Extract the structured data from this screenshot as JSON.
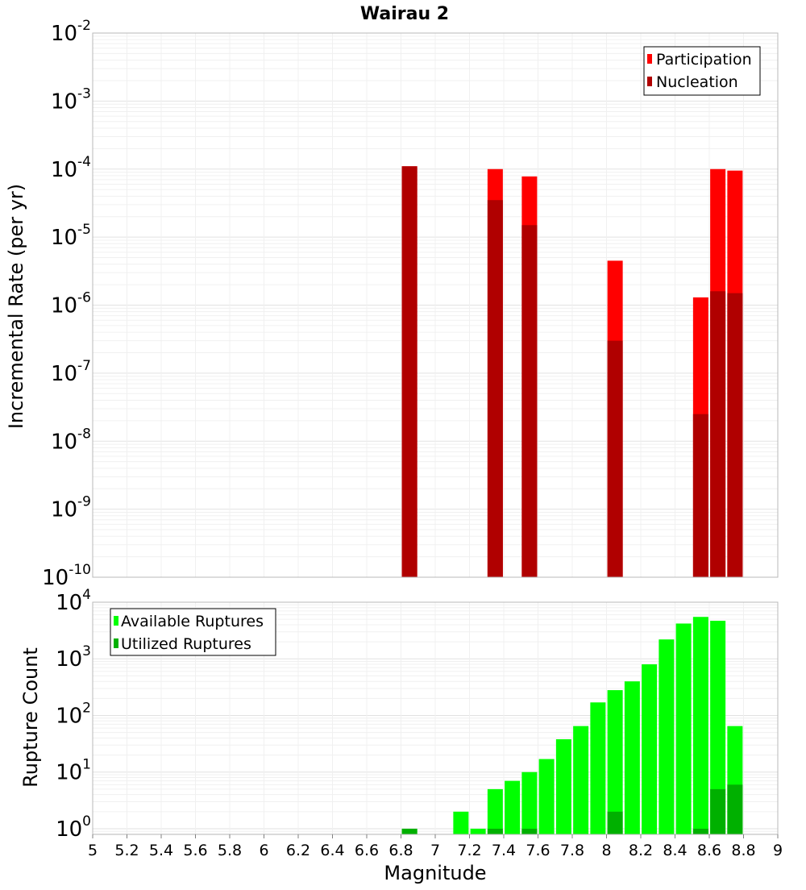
{
  "chart_data": [
    {
      "type": "bar",
      "title": "Wairau 2",
      "xlabel": "",
      "ylabel": "Incremental Rate (per yr)",
      "y_scale": "log",
      "ylim_exp": [
        -10,
        -2
      ],
      "xlim": [
        5,
        9
      ],
      "grid": true,
      "legend_position": "top-right",
      "series": [
        {
          "name": "Participation",
          "color": "#ff0000",
          "points": [
            {
              "x": 6.85,
              "y": 0.00011
            },
            {
              "x": 7.35,
              "y": 0.0001
            },
            {
              "x": 7.55,
              "y": 7.8e-05
            },
            {
              "x": 8.05,
              "y": 4.5e-06
            },
            {
              "x": 8.55,
              "y": 1.3e-06
            },
            {
              "x": 8.65,
              "y": 0.0001
            },
            {
              "x": 8.75,
              "y": 9.5e-05
            }
          ]
        },
        {
          "name": "Nucleation",
          "color": "#b00000",
          "points": [
            {
              "x": 6.85,
              "y": 0.00011
            },
            {
              "x": 7.35,
              "y": 3.5e-05
            },
            {
              "x": 7.55,
              "y": 1.5e-05
            },
            {
              "x": 8.05,
              "y": 3e-07
            },
            {
              "x": 8.55,
              "y": 2.5e-08
            },
            {
              "x": 8.65,
              "y": 1.6e-06
            },
            {
              "x": 8.75,
              "y": 1.5e-06
            }
          ]
        }
      ]
    },
    {
      "type": "bar",
      "title": "",
      "xlabel": "Magnitude",
      "ylabel": "Rupture Count",
      "y_scale": "log",
      "ylim_exp": [
        -0.1,
        4
      ],
      "xlim": [
        5,
        9
      ],
      "x_ticks": [
        "5",
        "5.2",
        "5.4",
        "5.6",
        "5.8",
        "6",
        "6.2",
        "6.4",
        "6.6",
        "6.8",
        "7",
        "7.2",
        "7.4",
        "7.6",
        "7.8",
        "8",
        "8.2",
        "8.4",
        "8.6",
        "8.8",
        "9"
      ],
      "grid": true,
      "legend_position": "top-left",
      "series": [
        {
          "name": "Available Ruptures",
          "color": "#00ff00",
          "points": [
            {
              "x": 6.85,
              "y": 1
            },
            {
              "x": 7.15,
              "y": 2
            },
            {
              "x": 7.25,
              "y": 1
            },
            {
              "x": 7.35,
              "y": 5
            },
            {
              "x": 7.45,
              "y": 7
            },
            {
              "x": 7.55,
              "y": 10
            },
            {
              "x": 7.65,
              "y": 17
            },
            {
              "x": 7.75,
              "y": 38
            },
            {
              "x": 7.85,
              "y": 65
            },
            {
              "x": 7.95,
              "y": 170
            },
            {
              "x": 8.05,
              "y": 280
            },
            {
              "x": 8.15,
              "y": 400
            },
            {
              "x": 8.25,
              "y": 800
            },
            {
              "x": 8.35,
              "y": 2200
            },
            {
              "x": 8.45,
              "y": 4200
            },
            {
              "x": 8.55,
              "y": 5500
            },
            {
              "x": 8.65,
              "y": 4700
            },
            {
              "x": 8.75,
              "y": 65
            }
          ]
        },
        {
          "name": "Utilized Ruptures",
          "color": "#00b000",
          "points": [
            {
              "x": 6.85,
              "y": 1
            },
            {
              "x": 7.35,
              "y": 1
            },
            {
              "x": 7.55,
              "y": 1
            },
            {
              "x": 8.05,
              "y": 2
            },
            {
              "x": 8.55,
              "y": 1
            },
            {
              "x": 8.65,
              "y": 5
            },
            {
              "x": 8.75,
              "y": 6
            }
          ]
        }
      ]
    }
  ]
}
